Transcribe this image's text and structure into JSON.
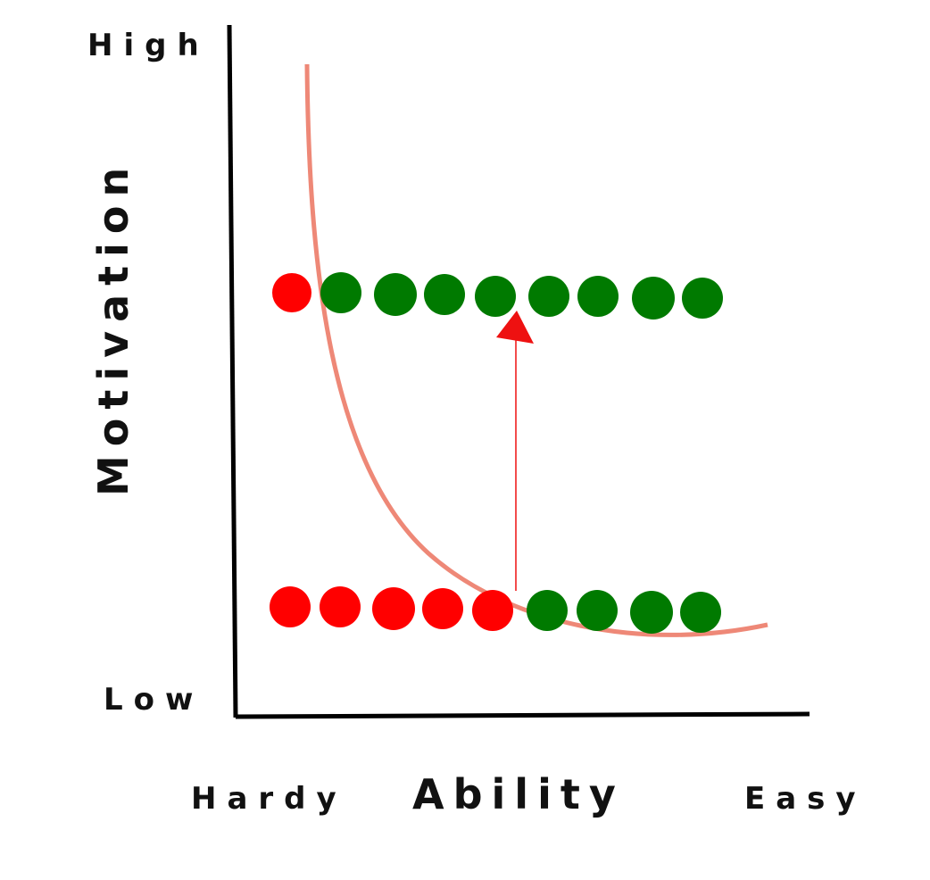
{
  "labels": {
    "y_high": "High",
    "y_low": "Low",
    "y_axis": "Motivation",
    "x_hard": "Hardy",
    "x_axis": "Ability",
    "x_easy": "Easy"
  },
  "colors": {
    "axis": "#000000",
    "curve": "#ee8877",
    "red_dot": "#ff0000",
    "green_dot": "#007a00",
    "arrow": "#ee1111"
  },
  "rows": {
    "top": [
      "red",
      "green",
      "green",
      "green",
      "green",
      "green",
      "green",
      "green",
      "green"
    ],
    "bottom": [
      "red",
      "red",
      "red",
      "red",
      "red",
      "green",
      "green",
      "green",
      "green"
    ]
  }
}
